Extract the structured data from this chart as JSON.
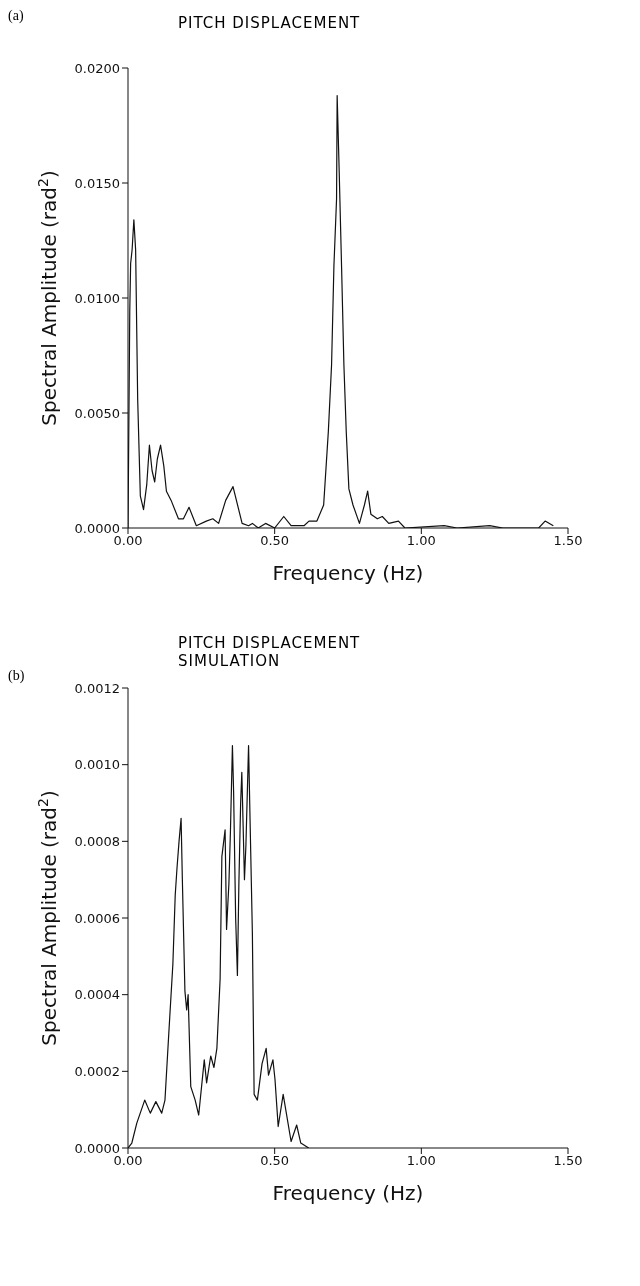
{
  "chart_data": [
    {
      "type": "line",
      "title": "PITCH DISPLACEMENT",
      "xlabel": "Frequency (Hz)",
      "ylabel": "Spectral Amplitude (rad$^{2}$)",
      "annotations": [
        "(a)"
      ],
      "color": "#111111",
      "marker": "none",
      "grid": false,
      "legend": false,
      "x": [
        0,
        0.006,
        0.009,
        0.014,
        0.02,
        0.026,
        0.033,
        0.042,
        0.053,
        0.064,
        0.073,
        0.082,
        0.091,
        0.1,
        0.111,
        0.122,
        0.131,
        0.147,
        0.172,
        0.189,
        0.208,
        0.233,
        0.267,
        0.289,
        0.309,
        0.333,
        0.358,
        0.389,
        0.411,
        0.424,
        0.444,
        0.469,
        0.5,
        0.531,
        0.556,
        0.6,
        0.617,
        0.644,
        0.667,
        0.683,
        0.694,
        0.702,
        0.711,
        0.713,
        0.72,
        0.728,
        0.736,
        0.744,
        0.753,
        0.767,
        0.789,
        0.806,
        0.817,
        0.828,
        0.85,
        0.867,
        0.889,
        0.922,
        0.944,
        1.078,
        1.122,
        1.233,
        1.278,
        1.4,
        1.422,
        1.45
      ],
      "values": [
        0,
        0.0094,
        0.0115,
        0.0121,
        0.0134,
        0.0121,
        0.0056,
        0.0014,
        0.0008,
        0.0019,
        0.0036,
        0.0025,
        0.002,
        0.003,
        0.0036,
        0.0027,
        0.0016,
        0.0012,
        0.0004,
        0.0004,
        0.0009,
        0.0001,
        0.0003,
        0.0004,
        0.0002,
        0.0012,
        0.0018,
        0.0002,
        0.0001,
        0.0002,
        0,
        0.0002,
        0,
        0.0005,
        0.0001,
        0.0001,
        0.0003,
        0.0003,
        0.001,
        0.0042,
        0.0071,
        0.0114,
        0.0143,
        0.0188,
        0.0155,
        0.0114,
        0.0071,
        0.0042,
        0.0017,
        0.001,
        0.0002,
        0.001,
        0.0016,
        0.0006,
        0.0004,
        0.0005,
        0.0002,
        0.0003,
        0,
        0.0001,
        0,
        0.0001,
        0,
        0,
        0.0003,
        0.0001
      ],
      "xlim": [
        0,
        1.5
      ],
      "xticks": [
        {
          "value": 0,
          "label": "0.00"
        },
        {
          "value": 0.5,
          "label": "0.50"
        },
        {
          "value": 1,
          "label": "1.00"
        },
        {
          "value": 1.5,
          "label": "1.50"
        }
      ],
      "ylim": [
        0,
        0.02
      ],
      "yticks": [
        {
          "value": 0,
          "label": "0.0000"
        },
        {
          "value": 0.005,
          "label": "0.0050"
        },
        {
          "value": 0.01,
          "label": "0.0100"
        },
        {
          "value": 0.015,
          "label": "0.0150"
        },
        {
          "value": 0.02,
          "label": "0.0200"
        }
      ]
    },
    {
      "type": "line",
      "title": "PITCH DISPLACEMENT",
      "subtitle": "SIMULATION",
      "xlabel": "Frequency (Hz)",
      "ylabel": "Spectral Amplitude (rad$^{2}$)",
      "annotations": [
        "(b)"
      ],
      "color": "#111111",
      "marker": "none",
      "grid": false,
      "legend": false,
      "x": [
        0,
        0.013,
        0.03,
        0.057,
        0.076,
        0.095,
        0.115,
        0.126,
        0.139,
        0.153,
        0.161,
        0.167,
        0.174,
        0.181,
        0.185,
        0.194,
        0.2,
        0.205,
        0.214,
        0.229,
        0.241,
        0.26,
        0.268,
        0.282,
        0.293,
        0.303,
        0.314,
        0.32,
        0.331,
        0.336,
        0.344,
        0.349,
        0.356,
        0.36,
        0.367,
        0.373,
        0.378,
        0.384,
        0.388,
        0.397,
        0.402,
        0.411,
        0.416,
        0.424,
        0.43,
        0.441,
        0.457,
        0.471,
        0.479,
        0.494,
        0.501,
        0.512,
        0.529,
        0.556,
        0.575,
        0.589,
        0.616
      ],
      "values": [
        0,
        1.3e-05,
        6.5e-05,
        0.000125,
        9.1e-05,
        0.000121,
        9.1e-05,
        0.000125,
        0.000298,
        0.00048,
        0.00066,
        0.00073,
        0.0008,
        0.00086,
        0.00071,
        0.00041,
        0.00036,
        0.0004,
        0.00016,
        0.000125,
        8.6e-05,
        0.00023,
        0.00017,
        0.00024,
        0.00021,
        0.00026,
        0.00044,
        0.00076,
        0.00083,
        0.00057,
        0.00069,
        0.00082,
        0.00105,
        0.00093,
        0.0006,
        0.00045,
        0.00069,
        0.0009,
        0.00098,
        0.0007,
        0.00079,
        0.00105,
        0.00086,
        0.00056,
        0.00014,
        0.000125,
        0.00022,
        0.00026,
        0.00019,
        0.00023,
        0.00018,
        5.6e-05,
        0.00014,
        1.7e-05,
        6e-05,
        1.3e-05,
        0
      ],
      "xlim": [
        0,
        1.5
      ],
      "xticks": [
        {
          "value": 0,
          "label": "0.00"
        },
        {
          "value": 0.5,
          "label": "0.50"
        },
        {
          "value": 1,
          "label": "1.00"
        },
        {
          "value": 1.5,
          "label": "1.50"
        }
      ],
      "ylim": [
        0,
        0.0012
      ],
      "yticks": [
        {
          "value": 0,
          "label": "0.0000"
        },
        {
          "value": 0.0002,
          "label": "0.0002"
        },
        {
          "value": 0.0004,
          "label": "0.0004"
        },
        {
          "value": 0.0006,
          "label": "0.0006"
        },
        {
          "value": 0.0008,
          "label": "0.0008"
        },
        {
          "value": 0.001,
          "label": "0.0010"
        },
        {
          "value": 0.0012,
          "label": "0.0012"
        }
      ]
    }
  ]
}
